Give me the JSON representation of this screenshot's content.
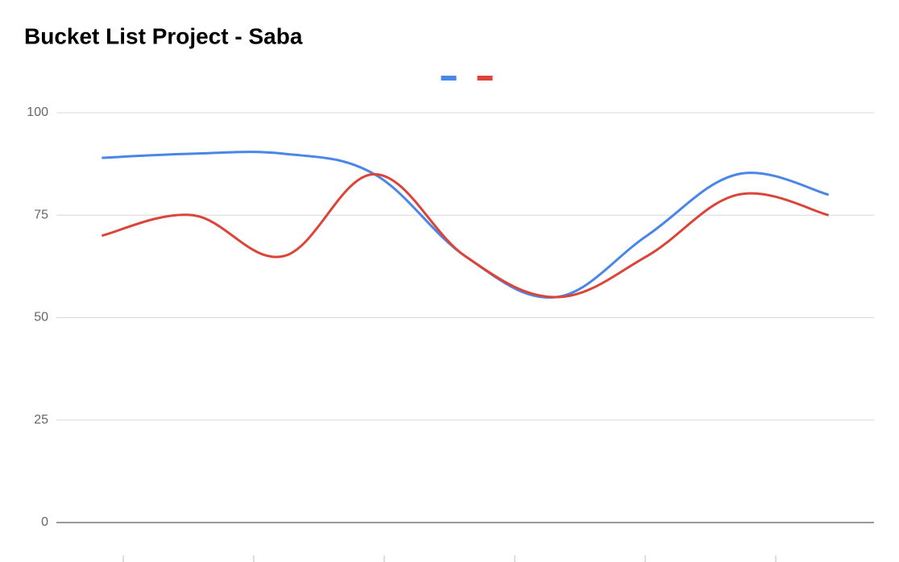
{
  "chart_data": {
    "type": "line",
    "title": "Bucket List Project - Saba",
    "categories": [
      null,
      null,
      null,
      null,
      null,
      null,
      null,
      null,
      null
    ],
    "series": [
      {
        "color": "#4a86e8",
        "values": [
          89,
          90,
          90,
          85,
          65,
          55,
          70,
          85,
          80
        ]
      },
      {
        "color": "#db4437",
        "values": [
          70,
          75,
          65,
          85,
          65,
          55,
          65,
          80,
          75
        ]
      }
    ],
    "ylim": [
      0,
      100
    ],
    "yticks": [
      0,
      25,
      50,
      75,
      100
    ],
    "grid": true,
    "legend": "top"
  }
}
